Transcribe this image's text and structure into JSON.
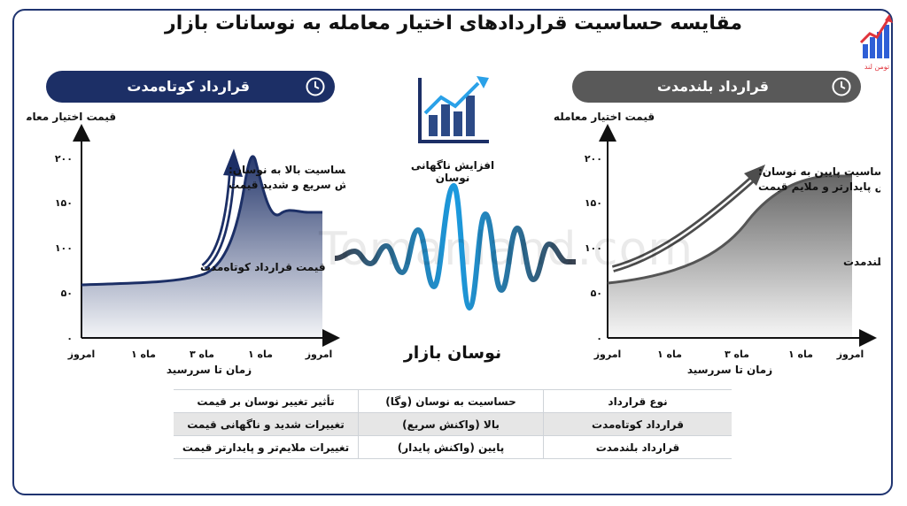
{
  "title": "مقایسه حساسیت قراردادهای اختیار معامله به نوسانات بازار",
  "watermark": "Tomanland.com",
  "logo_text": "تومن لند",
  "short_contract": {
    "pill_label": "قرارداد کوتاه‌مدت",
    "pill_color": "#1c2f66",
    "y_title": "قیمت اختیار معامله",
    "x_title": "زمان تا سررسید",
    "y_ticks": [
      "۲۰۰",
      "۱۵۰",
      "۱۰۰",
      "۵۰",
      "۰"
    ],
    "x_ticks": [
      "امروز",
      "۱ ماه",
      "۳ ماه",
      "۱ ماه",
      "امروز"
    ],
    "annotation_line1": "حساسیت بالا به نوسان:",
    "annotation_line2": "واکنش سریع و شدید قیمت",
    "curve_label": "قیمت قرارداد کوتاه‌مدت"
  },
  "long_contract": {
    "pill_label": "قرارداد بلندمدت",
    "pill_color": "#595959",
    "y_title": "قیمت اختیار معامله",
    "x_title": "زمان تا سررسید",
    "y_ticks": [
      "۲۰۰",
      "۱۵۰",
      "۱۰۰",
      "۵۰",
      "۰"
    ],
    "x_ticks": [
      "امروز",
      "۱ ماه",
      "۳ ماه",
      "۱ ماه",
      "امروز"
    ],
    "annotation_line1": "حساسیت پایین به نوسان:",
    "annotation_line2": "واکنش پایدارتر و ملایم قیمت",
    "curve_label": "قیمت قرارداد بلندمدت"
  },
  "center": {
    "spike_label": "افزایش ناگهانی نوسان",
    "market_label": "نوسان بازار"
  },
  "table": {
    "headers": [
      "نوع قرارداد",
      "حساسیت به نوسان (وگا)",
      "تأثیر تغییر نوسان بر قیمت"
    ],
    "rows": [
      [
        "قرارداد کوتاه‌مدت",
        "بالا (واکنش سریع)",
        "تغییرات شدید و ناگهانی قیمت"
      ],
      [
        "قرارداد بلندمدت",
        "پایین (واکنش پایدار)",
        "تغییرات ملایم‌تر و پایدارتر قیمت"
      ]
    ]
  }
}
